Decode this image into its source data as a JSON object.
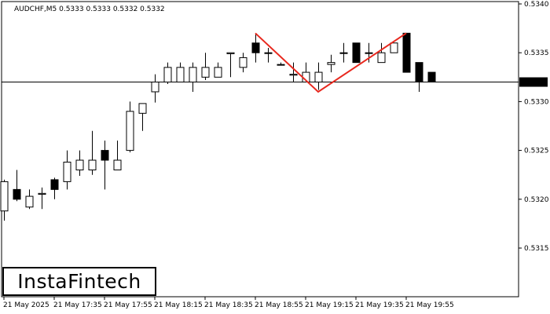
{
  "chart_data": {
    "type": "candlestick",
    "title": "AUDCHF,M5  0.5333 0.5333 0.5332 0.5332",
    "x_tick_labels": [
      "21 May 2025",
      "21 May 17:35",
      "21 May 17:55",
      "21 May 18:15",
      "21 May 18:35",
      "21 May 18:55",
      "21 May 19:15",
      "21 May 19:35",
      "21 May 19:55"
    ],
    "y_tick_labels": [
      "0.5340",
      "0.5335",
      "0.5330",
      "0.5325",
      "0.5320",
      "0.5315"
    ],
    "y_ticks": [
      0.534,
      0.5335,
      0.533,
      0.5325,
      0.532,
      0.5315
    ],
    "ylim": [
      0.531,
      0.534
    ],
    "current_price": 0.5332,
    "current_price_label": "0.5332",
    "pattern_line": [
      {
        "bar": 20,
        "price": 0.5337
      },
      {
        "bar": 25,
        "price": 0.5331
      },
      {
        "bar": 32,
        "price": 0.5337
      }
    ],
    "colors": {
      "bull_fill": "#ffffff",
      "bear_fill": "#000000",
      "pattern": "#e8281e",
      "price_line": "#000000"
    },
    "candles": [
      {
        "o": 0.53188,
        "h": 0.5322,
        "l": 0.53178,
        "c": 0.53218
      },
      {
        "o": 0.5321,
        "h": 0.5323,
        "l": 0.53198,
        "c": 0.532
      },
      {
        "o": 0.53192,
        "h": 0.5321,
        "l": 0.5319,
        "c": 0.53203
      },
      {
        "o": 0.53205,
        "h": 0.53212,
        "l": 0.5319,
        "c": 0.53206
      },
      {
        "o": 0.5322,
        "h": 0.53222,
        "l": 0.532,
        "c": 0.5321
      },
      {
        "o": 0.53218,
        "h": 0.5325,
        "l": 0.5321,
        "c": 0.53238
      },
      {
        "o": 0.5323,
        "h": 0.5325,
        "l": 0.53224,
        "c": 0.5324
      },
      {
        "o": 0.5323,
        "h": 0.5327,
        "l": 0.53225,
        "c": 0.5324
      },
      {
        "o": 0.5325,
        "h": 0.5326,
        "l": 0.5321,
        "c": 0.5324
      },
      {
        "o": 0.5323,
        "h": 0.5326,
        "l": 0.5323,
        "c": 0.5324
      },
      {
        "o": 0.5325,
        "h": 0.533,
        "l": 0.53248,
        "c": 0.5329
      },
      {
        "o": 0.53288,
        "h": 0.53298,
        "l": 0.5327,
        "c": 0.53298
      },
      {
        "o": 0.5331,
        "h": 0.53328,
        "l": 0.53299,
        "c": 0.5332
      },
      {
        "o": 0.5332,
        "h": 0.5334,
        "l": 0.53318,
        "c": 0.53335
      },
      {
        "o": 0.5332,
        "h": 0.5334,
        "l": 0.5332,
        "c": 0.53335
      },
      {
        "o": 0.5332,
        "h": 0.5334,
        "l": 0.5331,
        "c": 0.53335
      },
      {
        "o": 0.53325,
        "h": 0.5335,
        "l": 0.53322,
        "c": 0.53335
      },
      {
        "o": 0.53325,
        "h": 0.5334,
        "l": 0.53325,
        "c": 0.53335
      },
      {
        "o": 0.53349,
        "h": 0.5335,
        "l": 0.53325,
        "c": 0.5335
      },
      {
        "o": 0.53335,
        "h": 0.5335,
        "l": 0.5333,
        "c": 0.53345
      },
      {
        "o": 0.5336,
        "h": 0.5337,
        "l": 0.5334,
        "c": 0.5335
      },
      {
        "o": 0.5335,
        "h": 0.53355,
        "l": 0.5334,
        "c": 0.5335
      },
      {
        "o": 0.53338,
        "h": 0.5334,
        "l": 0.53338,
        "c": 0.53338
      },
      {
        "o": 0.53327,
        "h": 0.5334,
        "l": 0.5332,
        "c": 0.53328
      },
      {
        "o": 0.5332,
        "h": 0.5334,
        "l": 0.5332,
        "c": 0.5333
      },
      {
        "o": 0.5332,
        "h": 0.5334,
        "l": 0.53312,
        "c": 0.5333
      },
      {
        "o": 0.53338,
        "h": 0.53348,
        "l": 0.5333,
        "c": 0.5334
      },
      {
        "o": 0.5335,
        "h": 0.5336,
        "l": 0.5334,
        "c": 0.5335
      },
      {
        "o": 0.5336,
        "h": 0.5336,
        "l": 0.5334,
        "c": 0.5334
      },
      {
        "o": 0.5335,
        "h": 0.5336,
        "l": 0.5334,
        "c": 0.5335
      },
      {
        "o": 0.5334,
        "h": 0.5336,
        "l": 0.5334,
        "c": 0.5335
      },
      {
        "o": 0.5335,
        "h": 0.5336,
        "l": 0.5335,
        "c": 0.5336
      },
      {
        "o": 0.5337,
        "h": 0.5337,
        "l": 0.5333,
        "c": 0.5333
      },
      {
        "o": 0.5334,
        "h": 0.5334,
        "l": 0.5331,
        "c": 0.5332
      },
      {
        "o": 0.5333,
        "h": 0.5333,
        "l": 0.5332,
        "c": 0.5332
      }
    ]
  },
  "logo": {
    "text": "InstaFintech"
  }
}
